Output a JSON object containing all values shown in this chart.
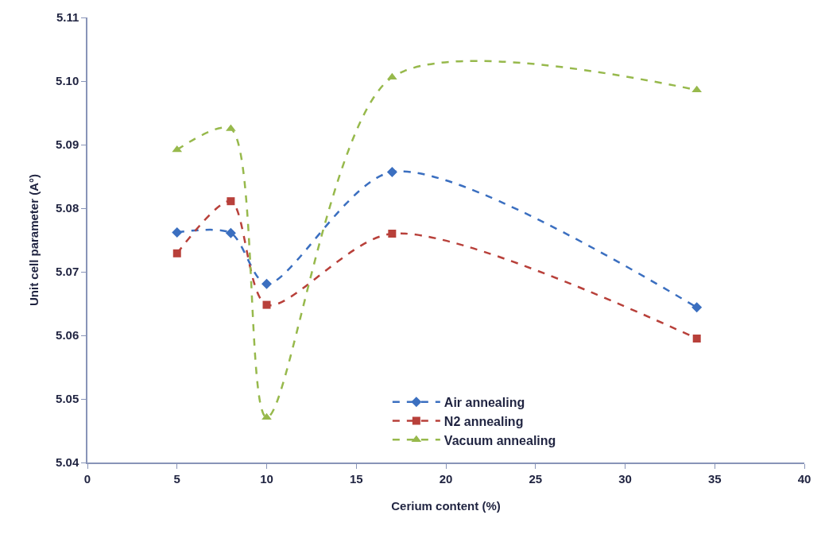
{
  "chart_data": {
    "type": "line",
    "xlabel": "Cerium content (%)",
    "ylabel": "Unit cell parameter (A°)",
    "x": [
      5,
      8,
      10,
      17,
      34
    ],
    "series": [
      {
        "name": "Air annealing",
        "color": "#3b6fc0",
        "marker": "diamond",
        "values": [
          5.0762,
          5.0761,
          5.0681,
          5.0857,
          5.0644
        ]
      },
      {
        "name": "N2 annealing",
        "color": "#b8403a",
        "marker": "square",
        "values": [
          5.0729,
          5.0811,
          5.0648,
          5.076,
          5.0595
        ]
      },
      {
        "name": "Vacuum annealing",
        "color": "#97b94c",
        "marker": "triangle",
        "values": [
          5.0892,
          5.0925,
          5.0471,
          5.1006,
          5.0986
        ]
      }
    ],
    "xlim": [
      0,
      40
    ],
    "xticks": [
      0,
      5,
      10,
      15,
      20,
      25,
      30,
      35,
      40
    ],
    "ylim": [
      5.04,
      5.11
    ],
    "yticks": [
      {
        "value": 5.04,
        "label": "5.04"
      },
      {
        "value": 5.05,
        "label": "5.05"
      },
      {
        "value": 5.06,
        "label": "5.06"
      },
      {
        "value": 5.07,
        "label": "5.07"
      },
      {
        "value": 5.08,
        "label": "5.08"
      },
      {
        "value": 5.09,
        "label": "5.09"
      },
      {
        "value": 5.1,
        "label": "5.10"
      },
      {
        "value": 5.11,
        "label": "5.11"
      }
    ],
    "legend": "bottom",
    "line_style": "dashed"
  }
}
